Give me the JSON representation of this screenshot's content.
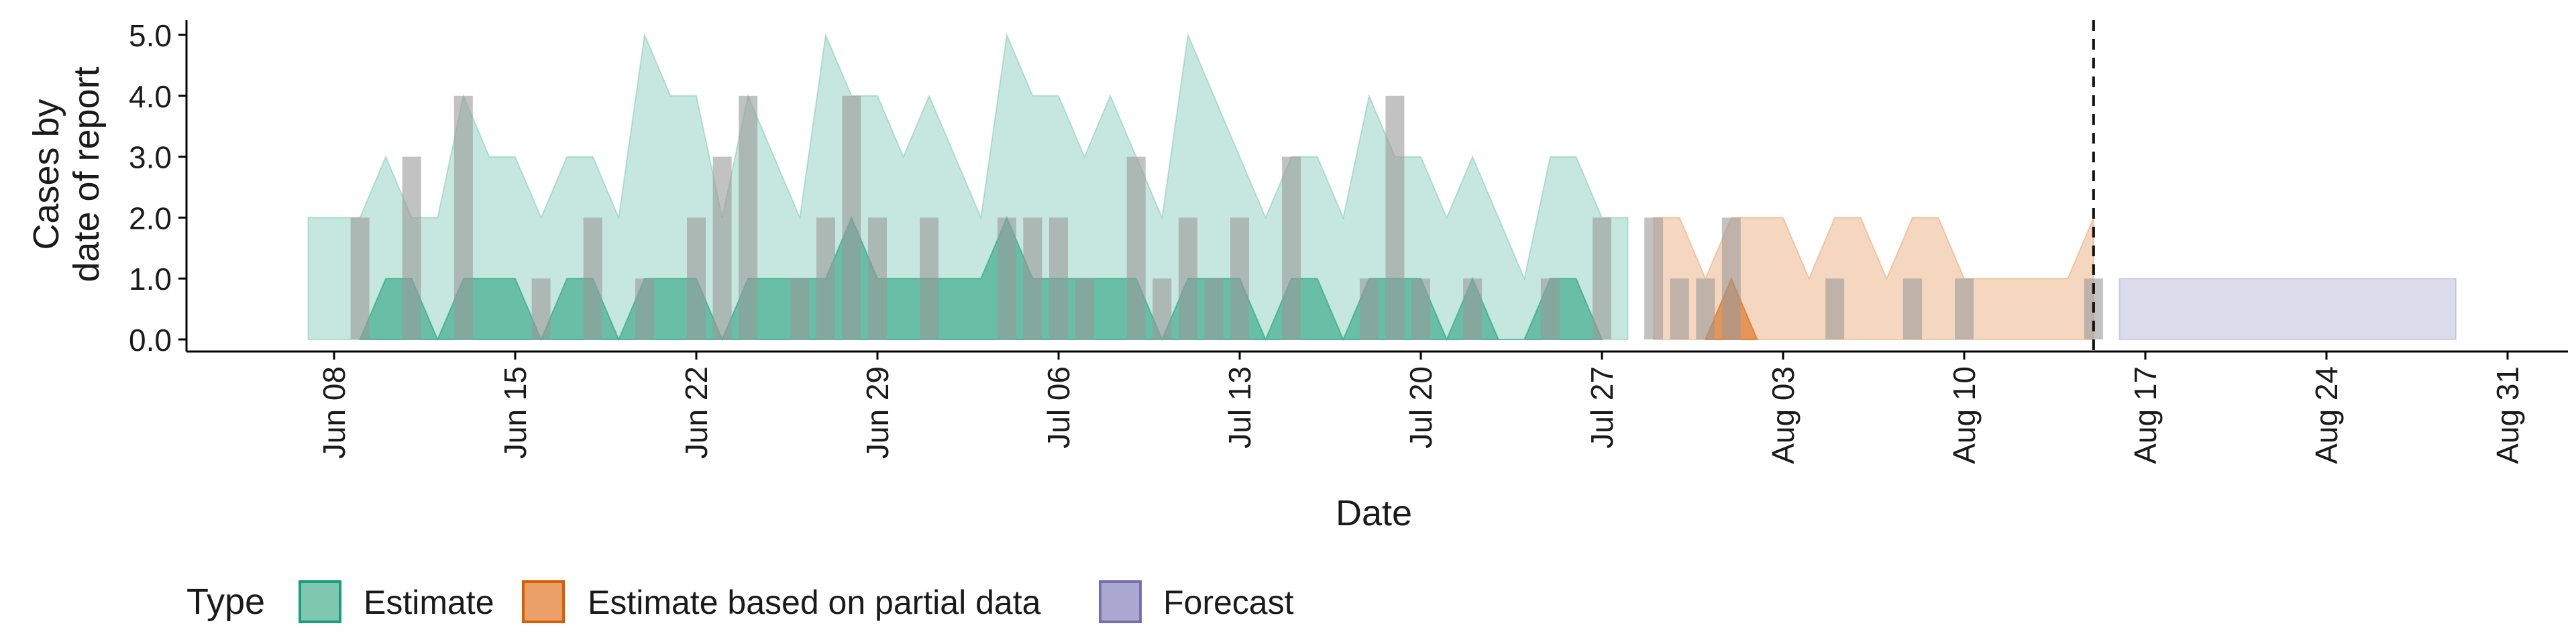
{
  "chart_data": {
    "type": "area",
    "title": "",
    "xlabel": "Date",
    "ylabel_lines": [
      "Cases by",
      "date of report"
    ],
    "ylim": [
      0,
      5
    ],
    "yticks": [
      "0.0",
      "1.0",
      "2.0",
      "3.0",
      "4.0",
      "5.0"
    ],
    "xlim": [
      "2020-06-01",
      "2020-09-01"
    ],
    "xticks": [
      {
        "date": "2020-06-08",
        "label": "Jun 08"
      },
      {
        "date": "2020-06-15",
        "label": "Jun 15"
      },
      {
        "date": "2020-06-22",
        "label": "Jun 22"
      },
      {
        "date": "2020-06-29",
        "label": "Jun 29"
      },
      {
        "date": "2020-07-06",
        "label": "Jul 06"
      },
      {
        "date": "2020-07-13",
        "label": "Jul 13"
      },
      {
        "date": "2020-07-20",
        "label": "Jul 20"
      },
      {
        "date": "2020-07-27",
        "label": "Jul 27"
      },
      {
        "date": "2020-08-03",
        "label": "Aug 03"
      },
      {
        "date": "2020-08-10",
        "label": "Aug 10"
      },
      {
        "date": "2020-08-17",
        "label": "Aug 17"
      },
      {
        "date": "2020-08-24",
        "label": "Aug 24"
      },
      {
        "date": "2020-08-31",
        "label": "Aug 31"
      }
    ],
    "vline_date": "2020-08-15",
    "grid": false,
    "legend": {
      "title": "Type",
      "placement": "bottom",
      "items": [
        {
          "label": "Estimate",
          "fill": "#7fc8b0",
          "stroke": "#1b9e77"
        },
        {
          "label": "Estimate based on partial data",
          "fill": "#eba06a",
          "stroke": "#d95f02"
        },
        {
          "label": "Forecast",
          "fill": "#aba8d2",
          "stroke": "#7570b3"
        }
      ]
    },
    "bars": {
      "color": "#999999",
      "points": [
        [
          "2020-06-09",
          2
        ],
        [
          "2020-06-11",
          3
        ],
        [
          "2020-06-13",
          4
        ],
        [
          "2020-06-16",
          1
        ],
        [
          "2020-06-18",
          2
        ],
        [
          "2020-06-20",
          1
        ],
        [
          "2020-06-22",
          2
        ],
        [
          "2020-06-23",
          3
        ],
        [
          "2020-06-24",
          4
        ],
        [
          "2020-06-26",
          1
        ],
        [
          "2020-06-27",
          2
        ],
        [
          "2020-06-28",
          4
        ],
        [
          "2020-06-29",
          2
        ],
        [
          "2020-07-01",
          2
        ],
        [
          "2020-07-04",
          2
        ],
        [
          "2020-07-05",
          2
        ],
        [
          "2020-07-06",
          2
        ],
        [
          "2020-07-07",
          1
        ],
        [
          "2020-07-09",
          3
        ],
        [
          "2020-07-10",
          1
        ],
        [
          "2020-07-11",
          2
        ],
        [
          "2020-07-12",
          1
        ],
        [
          "2020-07-13",
          2
        ],
        [
          "2020-07-15",
          3
        ],
        [
          "2020-07-18",
          1
        ],
        [
          "2020-07-19",
          4
        ],
        [
          "2020-07-20",
          1
        ],
        [
          "2020-07-22",
          1
        ],
        [
          "2020-07-25",
          1
        ],
        [
          "2020-07-27",
          2
        ],
        [
          "2020-07-29",
          2
        ],
        [
          "2020-07-30",
          1
        ],
        [
          "2020-07-31",
          1
        ],
        [
          "2020-08-01",
          2
        ],
        [
          "2020-08-05",
          1
        ],
        [
          "2020-08-08",
          1
        ],
        [
          "2020-08-10",
          1
        ],
        [
          "2020-08-15",
          1
        ]
      ]
    },
    "series": [
      {
        "type": "Estimate",
        "color": "#1b9e77",
        "outer_upper": [
          [
            "2020-06-07",
            2
          ],
          [
            "2020-06-09",
            2
          ],
          [
            "2020-06-10",
            3
          ],
          [
            "2020-06-11",
            2
          ],
          [
            "2020-06-12",
            2
          ],
          [
            "2020-06-13",
            4
          ],
          [
            "2020-06-14",
            3
          ],
          [
            "2020-06-15",
            3
          ],
          [
            "2020-06-16",
            2
          ],
          [
            "2020-06-17",
            3
          ],
          [
            "2020-06-18",
            3
          ],
          [
            "2020-06-19",
            2
          ],
          [
            "2020-06-20",
            5
          ],
          [
            "2020-06-21",
            4
          ],
          [
            "2020-06-22",
            4
          ],
          [
            "2020-06-23",
            2
          ],
          [
            "2020-06-24",
            4
          ],
          [
            "2020-06-25",
            3
          ],
          [
            "2020-06-26",
            2
          ],
          [
            "2020-06-27",
            5
          ],
          [
            "2020-06-28",
            4
          ],
          [
            "2020-06-29",
            4
          ],
          [
            "2020-06-30",
            3
          ],
          [
            "2020-07-01",
            4
          ],
          [
            "2020-07-02",
            3
          ],
          [
            "2020-07-03",
            2
          ],
          [
            "2020-07-04",
            5
          ],
          [
            "2020-07-05",
            4
          ],
          [
            "2020-07-06",
            4
          ],
          [
            "2020-07-07",
            3
          ],
          [
            "2020-07-08",
            4
          ],
          [
            "2020-07-09",
            3
          ],
          [
            "2020-07-10",
            2
          ],
          [
            "2020-07-11",
            5
          ],
          [
            "2020-07-12",
            4
          ],
          [
            "2020-07-13",
            3
          ],
          [
            "2020-07-14",
            2
          ],
          [
            "2020-07-15",
            3
          ],
          [
            "2020-07-16",
            3
          ],
          [
            "2020-07-17",
            2
          ],
          [
            "2020-07-18",
            4
          ],
          [
            "2020-07-19",
            3
          ],
          [
            "2020-07-20",
            3
          ],
          [
            "2020-07-21",
            2
          ],
          [
            "2020-07-22",
            3
          ],
          [
            "2020-07-23",
            2
          ],
          [
            "2020-07-24",
            1
          ],
          [
            "2020-07-25",
            3
          ],
          [
            "2020-07-26",
            3
          ],
          [
            "2020-07-27",
            2
          ],
          [
            "2020-07-28",
            2
          ]
        ],
        "inner_upper": [
          [
            "2020-06-09",
            0
          ],
          [
            "2020-06-10",
            1
          ],
          [
            "2020-06-11",
            1
          ],
          [
            "2020-06-12",
            0
          ],
          [
            "2020-06-13",
            1
          ],
          [
            "2020-06-14",
            1
          ],
          [
            "2020-06-15",
            1
          ],
          [
            "2020-06-16",
            0
          ],
          [
            "2020-06-17",
            1
          ],
          [
            "2020-06-18",
            1
          ],
          [
            "2020-06-19",
            0
          ],
          [
            "2020-06-20",
            1
          ],
          [
            "2020-06-21",
            1
          ],
          [
            "2020-06-22",
            1
          ],
          [
            "2020-06-23",
            0
          ],
          [
            "2020-06-24",
            1
          ],
          [
            "2020-06-25",
            1
          ],
          [
            "2020-06-26",
            1
          ],
          [
            "2020-06-27",
            1
          ],
          [
            "2020-06-28",
            2
          ],
          [
            "2020-06-29",
            1
          ],
          [
            "2020-06-30",
            1
          ],
          [
            "2020-07-01",
            1
          ],
          [
            "2020-07-02",
            1
          ],
          [
            "2020-07-03",
            1
          ],
          [
            "2020-07-04",
            2
          ],
          [
            "2020-07-05",
            1
          ],
          [
            "2020-07-06",
            1
          ],
          [
            "2020-07-07",
            1
          ],
          [
            "2020-07-08",
            1
          ],
          [
            "2020-07-09",
            1
          ],
          [
            "2020-07-10",
            0
          ],
          [
            "2020-07-11",
            1
          ],
          [
            "2020-07-12",
            1
          ],
          [
            "2020-07-13",
            1
          ],
          [
            "2020-07-14",
            0
          ],
          [
            "2020-07-15",
            1
          ],
          [
            "2020-07-16",
            1
          ],
          [
            "2020-07-17",
            0
          ],
          [
            "2020-07-18",
            1
          ],
          [
            "2020-07-19",
            1
          ],
          [
            "2020-07-20",
            1
          ],
          [
            "2020-07-21",
            0
          ],
          [
            "2020-07-22",
            1
          ],
          [
            "2020-07-23",
            0
          ],
          [
            "2020-07-24",
            0
          ],
          [
            "2020-07-25",
            1
          ],
          [
            "2020-07-26",
            1
          ],
          [
            "2020-07-27",
            0
          ]
        ]
      },
      {
        "type": "Estimate based on partial data",
        "color": "#d95f02",
        "outer_upper": [
          [
            "2020-07-29",
            2
          ],
          [
            "2020-07-30",
            2
          ],
          [
            "2020-07-31",
            1
          ],
          [
            "2020-08-01",
            2
          ],
          [
            "2020-08-02",
            2
          ],
          [
            "2020-08-03",
            2
          ],
          [
            "2020-08-04",
            1
          ],
          [
            "2020-08-05",
            2
          ],
          [
            "2020-08-06",
            2
          ],
          [
            "2020-08-07",
            1
          ],
          [
            "2020-08-08",
            2
          ],
          [
            "2020-08-09",
            2
          ],
          [
            "2020-08-10",
            1
          ],
          [
            "2020-08-11",
            1
          ],
          [
            "2020-08-12",
            1
          ],
          [
            "2020-08-13",
            1
          ],
          [
            "2020-08-14",
            1
          ],
          [
            "2020-08-15",
            2
          ]
        ],
        "inner_upper": [
          [
            "2020-07-31",
            0
          ],
          [
            "2020-08-01",
            1
          ],
          [
            "2020-08-02",
            0
          ]
        ]
      },
      {
        "type": "Forecast",
        "color": "#7570b3",
        "outer_upper": [
          [
            "2020-08-16",
            1
          ],
          [
            "2020-08-29",
            1
          ]
        ],
        "inner_upper": []
      }
    ]
  }
}
